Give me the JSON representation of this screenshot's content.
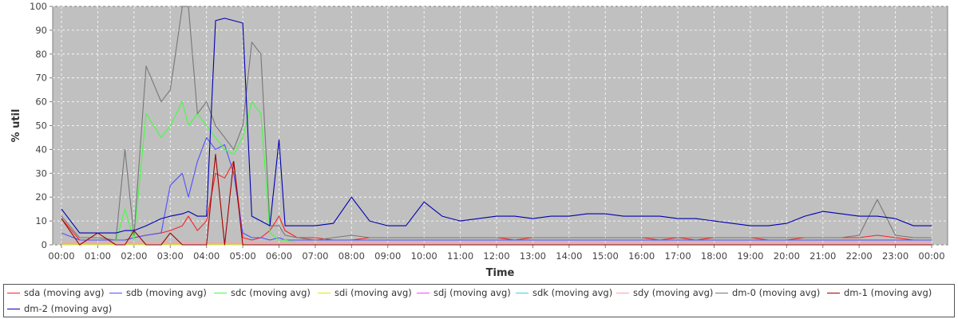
{
  "chart_data": {
    "type": "line",
    "xlabel": "Time",
    "ylabel": "% util",
    "ylim": [
      0,
      100
    ],
    "yticks": [
      0,
      10,
      20,
      30,
      40,
      50,
      60,
      70,
      80,
      90,
      100
    ],
    "xticks": [
      "00:00",
      "01:00",
      "02:00",
      "03:00",
      "04:00",
      "05:00",
      "06:00",
      "07:00",
      "08:00",
      "09:00",
      "10:00",
      "11:00",
      "12:00",
      "13:00",
      "14:00",
      "15:00",
      "16:00",
      "17:00",
      "18:00",
      "19:00",
      "20:00",
      "21:00",
      "22:00",
      "23:00",
      "00:00"
    ],
    "grid": true,
    "background": "#c0c0c0",
    "legend_position": "bottom",
    "x": [
      "00:00",
      "00:30",
      "01:00",
      "01:30",
      "01:45",
      "02:00",
      "02:20",
      "02:45",
      "03:00",
      "03:20",
      "03:30",
      "03:45",
      "04:00",
      "04:15",
      "04:30",
      "04:45",
      "05:00",
      "05:15",
      "05:30",
      "05:45",
      "06:00",
      "06:10",
      "06:30",
      "07:00",
      "07:30",
      "08:00",
      "08:30",
      "09:00",
      "09:30",
      "10:00",
      "10:30",
      "11:00",
      "11:30",
      "12:00",
      "12:30",
      "13:00",
      "13:30",
      "14:00",
      "14:30",
      "15:00",
      "15:30",
      "16:00",
      "16:30",
      "17:00",
      "17:30",
      "18:00",
      "18:30",
      "19:00",
      "19:30",
      "20:00",
      "20:30",
      "21:00",
      "21:30",
      "22:00",
      "22:30",
      "23:00",
      "23:30",
      "00:00"
    ],
    "series": [
      {
        "name": "sda (moving avg)",
        "color": "#ff2020",
        "values": [
          11,
          2,
          2,
          2,
          2,
          3,
          4,
          5,
          6,
          8,
          12,
          6,
          10,
          30,
          28,
          35,
          3,
          2,
          3,
          6,
          12,
          6,
          3,
          3,
          2,
          2,
          3,
          3,
          3,
          3,
          3,
          3,
          3,
          3,
          2,
          3,
          3,
          3,
          3,
          3,
          3,
          3,
          2,
          3,
          2,
          3,
          3,
          3,
          2,
          2,
          3,
          3,
          3,
          3,
          4,
          3,
          2,
          2
        ]
      },
      {
        "name": "sdb (moving avg)",
        "color": "#5050ff",
        "values": [
          5,
          2,
          2,
          2,
          2,
          3,
          4,
          5,
          25,
          30,
          20,
          35,
          45,
          40,
          42,
          30,
          5,
          3,
          3,
          2,
          3,
          2,
          2,
          2,
          2,
          2,
          2,
          2,
          2,
          2,
          2,
          2,
          2,
          2,
          2,
          2,
          2,
          2,
          2,
          2,
          2,
          2,
          2,
          2,
          2,
          2,
          2,
          2,
          2,
          2,
          2,
          2,
          2,
          2,
          2,
          2,
          2,
          2
        ]
      },
      {
        "name": "sdc (moving avg)",
        "color": "#40ff40",
        "values": [
          1,
          1,
          1,
          1,
          15,
          2,
          55,
          45,
          50,
          60,
          50,
          55,
          50,
          45,
          40,
          38,
          45,
          60,
          55,
          5,
          2,
          2,
          1,
          1,
          1,
          1,
          1,
          1,
          1,
          1,
          1,
          1,
          1,
          1,
          1,
          1,
          1,
          1,
          1,
          1,
          1,
          1,
          1,
          1,
          1,
          1,
          1,
          1,
          1,
          1,
          1,
          1,
          1,
          1,
          1,
          1,
          1,
          1
        ]
      },
      {
        "name": "sdi (moving avg)",
        "color": "#e8e800",
        "values": [
          0,
          0,
          0,
          0,
          0,
          0,
          0,
          0,
          0,
          0,
          0,
          0,
          0,
          0,
          0,
          0,
          0,
          0,
          0,
          0,
          0,
          0,
          0,
          0,
          0,
          0,
          0,
          0,
          0,
          0,
          0,
          0,
          0,
          0,
          0,
          0,
          0,
          0,
          0,
          0,
          0,
          0,
          0,
          0,
          0,
          0,
          0,
          0,
          0,
          0,
          0,
          0,
          0,
          0,
          0,
          0,
          0,
          0
        ]
      },
      {
        "name": "sdj (moving avg)",
        "color": "#ff40ff",
        "values": [
          1,
          1,
          1,
          1,
          1,
          1,
          1,
          1,
          1,
          1,
          1,
          1,
          1,
          1,
          1,
          1,
          1,
          1,
          1,
          1,
          1,
          1,
          1,
          1,
          1,
          1,
          1,
          1,
          1,
          1,
          1,
          1,
          1,
          1,
          1,
          1,
          1,
          1,
          1,
          1,
          1,
          1,
          1,
          1,
          1,
          1,
          1,
          1,
          1,
          1,
          1,
          1,
          1,
          1,
          1,
          1,
          1,
          1
        ]
      },
      {
        "name": "sdk (moving avg)",
        "color": "#40d0e0",
        "values": [
          1,
          1,
          1,
          1,
          1,
          1,
          1,
          1,
          1,
          1,
          1,
          1,
          1,
          1,
          1,
          1,
          1,
          1,
          1,
          1,
          1,
          1,
          1,
          1,
          1,
          1,
          1,
          1,
          1,
          1,
          1,
          1,
          1,
          1,
          1,
          1,
          1,
          1,
          1,
          1,
          1,
          1,
          1,
          1,
          1,
          1,
          1,
          1,
          1,
          1,
          1,
          1,
          1,
          1,
          1,
          1,
          1,
          1
        ]
      },
      {
        "name": "sdy (moving avg)",
        "color": "#ffa0a0",
        "values": [
          1,
          1,
          1,
          1,
          1,
          1,
          1,
          1,
          1,
          1,
          1,
          1,
          1,
          1,
          1,
          1,
          1,
          1,
          1,
          1,
          1,
          1,
          1,
          1,
          1,
          1,
          1,
          1,
          1,
          1,
          1,
          1,
          1,
          1,
          1,
          1,
          1,
          1,
          1,
          1,
          1,
          1,
          1,
          1,
          1,
          1,
          1,
          1,
          1,
          1,
          1,
          1,
          1,
          1,
          1,
          1,
          1,
          1
        ]
      },
      {
        "name": "dm-0 (moving avg)",
        "color": "#777777",
        "values": [
          12,
          3,
          3,
          2,
          40,
          4,
          75,
          60,
          65,
          100,
          100,
          55,
          60,
          50,
          45,
          40,
          50,
          85,
          80,
          8,
          8,
          4,
          3,
          2,
          3,
          4,
          3,
          3,
          3,
          3,
          3,
          3,
          3,
          3,
          3,
          3,
          3,
          3,
          3,
          3,
          3,
          3,
          3,
          3,
          3,
          3,
          3,
          3,
          3,
          3,
          3,
          3,
          3,
          4,
          19,
          4,
          3,
          3
        ]
      },
      {
        "name": "dm-1 (moving avg)",
        "color": "#a00000",
        "values": [
          11,
          0,
          5,
          0,
          0,
          6,
          0,
          0,
          5,
          0,
          0,
          0,
          0,
          38,
          0,
          35,
          0,
          0,
          0,
          0,
          0,
          0,
          0,
          0,
          0,
          0,
          0,
          0,
          0,
          0,
          0,
          0,
          0,
          0,
          0,
          0,
          0,
          0,
          0,
          0,
          0,
          0,
          0,
          0,
          0,
          0,
          0,
          0,
          0,
          0,
          0,
          0,
          0,
          0,
          0,
          0,
          0,
          0
        ]
      },
      {
        "name": "dm-2 (moving avg)",
        "color": "#0000b0",
        "values": [
          15,
          5,
          5,
          5,
          6,
          6,
          8,
          11,
          12,
          13,
          14,
          12,
          12,
          94,
          95,
          94,
          93,
          12,
          10,
          8,
          44,
          8,
          8,
          8,
          9,
          20,
          10,
          8,
          8,
          18,
          12,
          10,
          11,
          12,
          12,
          11,
          12,
          12,
          13,
          13,
          12,
          12,
          12,
          11,
          11,
          10,
          9,
          8,
          8,
          9,
          12,
          14,
          13,
          12,
          12,
          11,
          8,
          8
        ]
      }
    ]
  },
  "legend": {
    "items": [
      {
        "label": "sda (moving avg)",
        "color": "#ff2020"
      },
      {
        "label": "sdb (moving avg)",
        "color": "#5050ff"
      },
      {
        "label": "sdc (moving avg)",
        "color": "#40ff40"
      },
      {
        "label": "sdi (moving avg)",
        "color": "#e8e800"
      },
      {
        "label": "sdj (moving avg)",
        "color": "#ff40ff"
      },
      {
        "label": "sdk (moving avg)",
        "color": "#40d0e0"
      },
      {
        "label": "sdy (moving avg)",
        "color": "#ffa0a0"
      },
      {
        "label": "dm-0 (moving avg)",
        "color": "#777777"
      },
      {
        "label": "dm-1 (moving avg)",
        "color": "#a00000"
      },
      {
        "label": "dm-2 (moving avg)",
        "color": "#0000b0"
      }
    ]
  }
}
